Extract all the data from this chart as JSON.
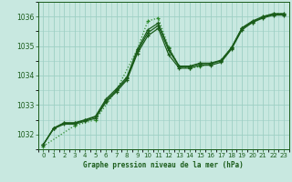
{
  "bg_color": "#c8e8e0",
  "grid_color": "#9dcfc4",
  "line_color_dark": "#1a5c1a",
  "line_color_light": "#2d8b2d",
  "title": "Graphe pression niveau de la mer (hPa)",
  "ylim": [
    1031.5,
    1036.5
  ],
  "xlim": [
    -0.5,
    23.5
  ],
  "yticks": [
    1032,
    1033,
    1034,
    1035,
    1036
  ],
  "xticks": [
    0,
    1,
    2,
    3,
    4,
    5,
    6,
    7,
    8,
    9,
    10,
    11,
    12,
    13,
    14,
    15,
    16,
    17,
    18,
    19,
    20,
    21,
    22,
    23
  ],
  "series_dotted_x": [
    0,
    3,
    5,
    7,
    9,
    10,
    11,
    12,
    13,
    14,
    15,
    17,
    18,
    19,
    20,
    21,
    22,
    23
  ],
  "series_dotted_y": [
    1031.6,
    1032.3,
    1032.5,
    1033.5,
    1034.9,
    1035.85,
    1035.95,
    1034.95,
    1034.3,
    1034.25,
    1034.3,
    1034.5,
    1034.95,
    1035.6,
    1035.8,
    1036.0,
    1036.1,
    1036.1
  ],
  "series1_x": [
    0,
    1,
    2,
    3,
    4,
    5,
    6,
    7,
    8,
    9,
    10,
    11,
    12,
    13,
    14,
    15,
    16,
    17,
    18,
    19,
    20,
    21,
    22,
    23
  ],
  "series1_y": [
    1031.65,
    1032.2,
    1032.35,
    1032.35,
    1032.45,
    1032.55,
    1033.1,
    1033.45,
    1033.85,
    1034.75,
    1035.35,
    1035.6,
    1034.7,
    1034.25,
    1034.25,
    1034.35,
    1034.35,
    1034.45,
    1034.9,
    1035.55,
    1035.8,
    1035.95,
    1036.05,
    1036.05
  ],
  "series2_x": [
    0,
    1,
    2,
    3,
    4,
    5,
    6,
    7,
    8,
    9,
    10,
    11,
    12,
    13,
    14,
    15,
    16,
    17,
    18,
    19,
    20,
    21,
    22,
    23
  ],
  "series2_y": [
    1031.65,
    1032.2,
    1032.38,
    1032.38,
    1032.48,
    1032.6,
    1033.15,
    1033.5,
    1033.9,
    1034.82,
    1035.45,
    1035.7,
    1034.85,
    1034.3,
    1034.3,
    1034.4,
    1034.4,
    1034.5,
    1034.92,
    1035.6,
    1035.82,
    1035.98,
    1036.08,
    1036.08
  ],
  "series3_x": [
    0,
    1,
    2,
    3,
    4,
    5,
    6,
    7,
    8,
    9,
    10,
    11,
    12,
    13,
    14,
    15,
    16,
    17,
    18,
    19,
    20,
    21,
    22,
    23
  ],
  "series3_y": [
    1031.65,
    1032.22,
    1032.4,
    1032.4,
    1032.5,
    1032.62,
    1033.2,
    1033.55,
    1033.95,
    1034.88,
    1035.55,
    1035.78,
    1034.92,
    1034.32,
    1034.32,
    1034.42,
    1034.42,
    1034.52,
    1034.95,
    1035.62,
    1035.85,
    1036.0,
    1036.1,
    1036.1
  ]
}
